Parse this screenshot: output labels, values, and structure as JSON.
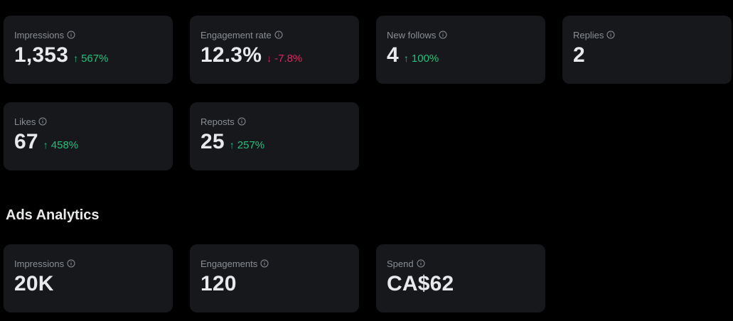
{
  "organic": [
    {
      "label": "Impressions",
      "value": "1,353",
      "delta": "567%",
      "direction": "up"
    },
    {
      "label": "Engagement rate",
      "value": "12.3%",
      "delta": "-7.8%",
      "direction": "down"
    },
    {
      "label": "New follows",
      "value": "4",
      "delta": "100%",
      "direction": "up"
    },
    {
      "label": "Replies",
      "value": "2"
    },
    {
      "label": "Likes",
      "value": "67",
      "delta": "458%",
      "direction": "up"
    },
    {
      "label": "Reposts",
      "value": "25",
      "delta": "257%",
      "direction": "up"
    }
  ],
  "ads": {
    "title": "Ads Analytics",
    "cards": [
      {
        "label": "Impressions",
        "value": "20K"
      },
      {
        "label": "Engagements",
        "value": "120"
      },
      {
        "label": "Spend",
        "value": "CA$62"
      }
    ]
  },
  "colors": {
    "background": "#000000",
    "card": "#16181c",
    "up": "#22c17a",
    "down": "#e0245e",
    "muted": "#8b8f94"
  },
  "icons": {
    "info": "info-circle-icon",
    "up": "arrow-up-icon",
    "down": "arrow-down-icon"
  }
}
